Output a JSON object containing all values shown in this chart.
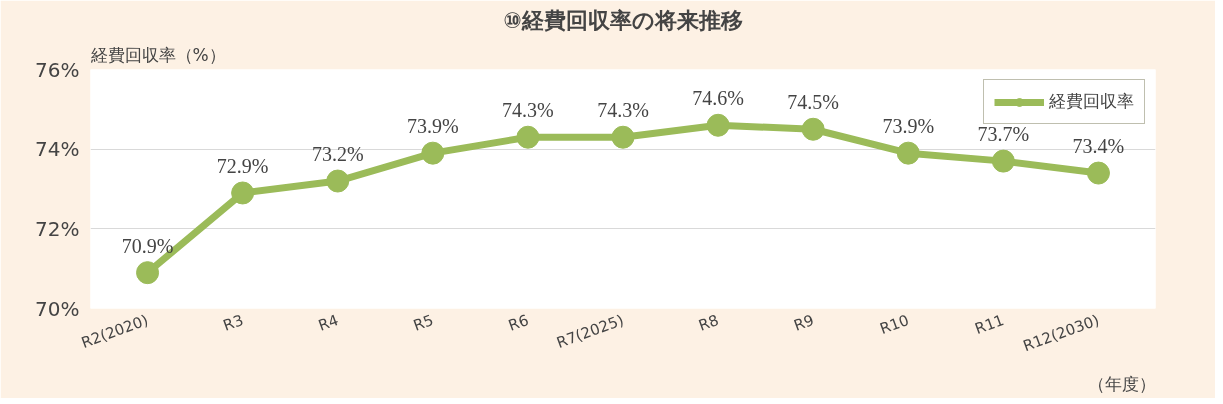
{
  "chart_data": {
    "type": "line",
    "title": "⑩経費回収率の将来推移",
    "ylabel": "経費回収率（%）",
    "xlabel": "（年度）",
    "categories": [
      "R2(2020)",
      "R3",
      "R4",
      "R5",
      "R6",
      "R7(2025)",
      "R8",
      "R9",
      "R10",
      "R11",
      "R12(2030)"
    ],
    "series": [
      {
        "name": "経費回収率",
        "color": "#9bbb59",
        "values": [
          70.9,
          72.9,
          73.2,
          73.9,
          74.3,
          74.3,
          74.6,
          74.5,
          73.9,
          73.7,
          73.4
        ],
        "value_labels": [
          "70.9%",
          "72.9%",
          "73.2%",
          "73.9%",
          "74.3%",
          "74.3%",
          "74.6%",
          "74.5%",
          "73.9%",
          "73.7%",
          "73.4%"
        ]
      }
    ],
    "ylim": [
      70,
      76
    ],
    "yticks": [
      {
        "value": 70,
        "label": "70%"
      },
      {
        "value": 72,
        "label": "72%"
      },
      {
        "value": 74,
        "label": "74%"
      },
      {
        "value": 76,
        "label": "76%"
      }
    ],
    "grid": "y",
    "legend": "top right",
    "marker": "circle",
    "line_style": "solid"
  }
}
